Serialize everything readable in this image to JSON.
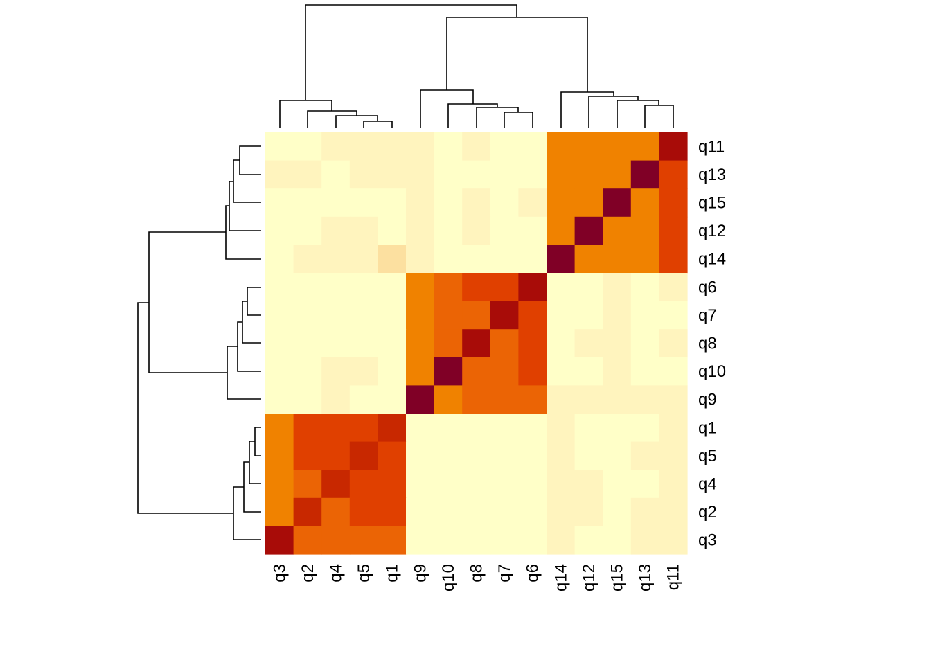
{
  "chart_data": {
    "type": "heatmap",
    "title": "",
    "xlabel": "",
    "ylabel": "",
    "columns": [
      "q3",
      "q2",
      "q4",
      "q5",
      "q1",
      "q9",
      "q10",
      "q8",
      "q7",
      "q6",
      "q14",
      "q12",
      "q15",
      "q13",
      "q11"
    ],
    "rows": [
      "q11",
      "q13",
      "q15",
      "q12",
      "q14",
      "q6",
      "q7",
      "q8",
      "q10",
      "q9",
      "q1",
      "q5",
      "q4",
      "q2",
      "q3"
    ],
    "value_range": [
      0,
      1
    ],
    "values": [
      [
        0.05,
        0.05,
        0.1,
        0.1,
        0.1,
        0.1,
        0.05,
        0.1,
        0.05,
        0.05,
        0.55,
        0.55,
        0.55,
        0.55,
        0.9
      ],
      [
        0.1,
        0.1,
        0.05,
        0.1,
        0.1,
        0.1,
        0.05,
        0.05,
        0.05,
        0.05,
        0.5,
        0.5,
        0.55,
        1.0,
        0.65
      ],
      [
        0.05,
        0.05,
        0.05,
        0.05,
        0.05,
        0.1,
        0.05,
        0.1,
        0.05,
        0.1,
        0.5,
        0.5,
        1.0,
        0.55,
        0.65
      ],
      [
        0.05,
        0.05,
        0.1,
        0.1,
        0.05,
        0.1,
        0.05,
        0.1,
        0.05,
        0.05,
        0.5,
        1.0,
        0.5,
        0.5,
        0.65
      ],
      [
        0.05,
        0.1,
        0.1,
        0.1,
        0.15,
        0.1,
        0.05,
        0.05,
        0.05,
        0.05,
        1.0,
        0.5,
        0.5,
        0.5,
        0.65
      ],
      [
        0.05,
        0.05,
        0.05,
        0.05,
        0.05,
        0.5,
        0.6,
        0.65,
        0.65,
        0.9,
        0.05,
        0.05,
        0.1,
        0.05,
        0.1
      ],
      [
        0.05,
        0.05,
        0.05,
        0.05,
        0.05,
        0.5,
        0.6,
        0.6,
        0.9,
        0.65,
        0.05,
        0.05,
        0.1,
        0.05,
        0.05
      ],
      [
        0.05,
        0.05,
        0.05,
        0.05,
        0.05,
        0.5,
        0.6,
        0.9,
        0.6,
        0.65,
        0.05,
        0.1,
        0.1,
        0.05,
        0.1
      ],
      [
        0.05,
        0.05,
        0.1,
        0.1,
        0.05,
        0.5,
        1.0,
        0.6,
        0.6,
        0.65,
        0.05,
        0.05,
        0.1,
        0.05,
        0.05
      ],
      [
        0.05,
        0.05,
        0.1,
        0.05,
        0.05,
        1.0,
        0.5,
        0.6,
        0.6,
        0.6,
        0.1,
        0.1,
        0.1,
        0.1,
        0.1
      ],
      [
        0.5,
        0.65,
        0.65,
        0.65,
        0.75,
        0.05,
        0.05,
        0.05,
        0.05,
        0.05,
        0.1,
        0.05,
        0.05,
        0.05,
        0.1
      ],
      [
        0.5,
        0.65,
        0.65,
        0.75,
        0.65,
        0.05,
        0.05,
        0.05,
        0.05,
        0.05,
        0.1,
        0.05,
        0.05,
        0.1,
        0.1
      ],
      [
        0.5,
        0.6,
        0.75,
        0.65,
        0.65,
        0.05,
        0.05,
        0.05,
        0.05,
        0.05,
        0.1,
        0.1,
        0.05,
        0.05,
        0.1
      ],
      [
        0.5,
        0.75,
        0.6,
        0.65,
        0.65,
        0.05,
        0.05,
        0.05,
        0.05,
        0.05,
        0.1,
        0.1,
        0.05,
        0.1,
        0.1
      ],
      [
        0.9,
        0.6,
        0.6,
        0.6,
        0.6,
        0.05,
        0.05,
        0.05,
        0.05,
        0.05,
        0.1,
        0.05,
        0.05,
        0.1,
        0.1
      ]
    ],
    "color_scale": {
      "name": "heat",
      "stops": [
        "#FFFFC8",
        "#FFF4BE",
        "#FCE0A0",
        "#F08200",
        "#EB6405",
        "#E04000",
        "#C82800",
        "#A80C08",
        "#800026"
      ]
    },
    "dendrogram": {
      "columns_top": "shown",
      "rows_left": "shown"
    }
  }
}
